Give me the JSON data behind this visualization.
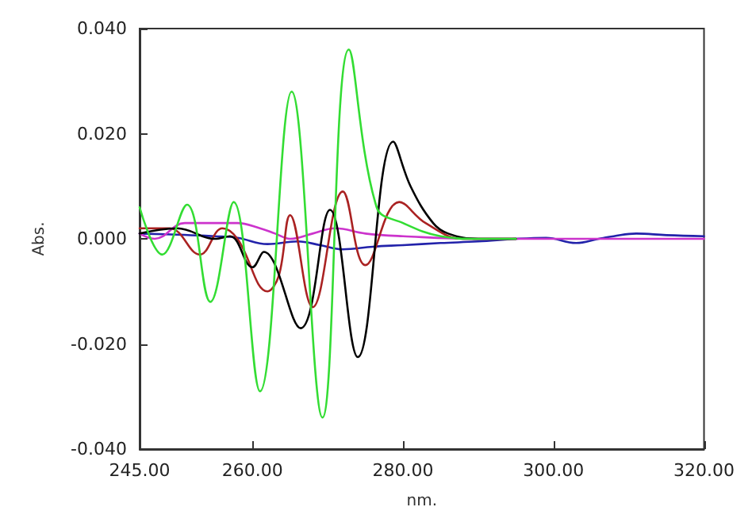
{
  "chart_data": {
    "type": "line",
    "xlabel": "nm.",
    "ylabel": "Abs.",
    "xlim": [
      245,
      320
    ],
    "xticks": [
      {
        "value": 245,
        "label": "245.00"
      },
      {
        "value": 260,
        "label": "260.00"
      },
      {
        "value": 280,
        "label": "280.00"
      },
      {
        "value": 300,
        "label": "300.00"
      },
      {
        "value": 320,
        "label": "320.00"
      }
    ],
    "ylim": [
      -0.04,
      0.04
    ],
    "yticks": [
      {
        "value": -0.04,
        "label": "-0.040"
      },
      {
        "value": -0.02,
        "label": "-0.020"
      },
      {
        "value": 0,
        "label": "0.000"
      },
      {
        "value": 0.02,
        "label": "0.020"
      },
      {
        "value": 0.04,
        "label": "0.040"
      }
    ],
    "grid": false,
    "marker": "none",
    "line_style": "solid",
    "series": [
      {
        "color": "#2222aa",
        "x": [
          245,
          250,
          255,
          258,
          262,
          266,
          269,
          272,
          276,
          280,
          285,
          290,
          295,
          299,
          303,
          306,
          308,
          311,
          315,
          320
        ],
        "values": [
          0.001,
          0.0008,
          0.0005,
          0.0002,
          -0.001,
          -0.0005,
          -0.0012,
          -0.002,
          -0.0015,
          -0.0012,
          -0.0008,
          -0.0005,
          0,
          0.0002,
          -0.0008,
          0,
          0.0005,
          0.001,
          0.0007,
          0.0005
        ]
      },
      {
        "color": "#cc33cc",
        "x": [
          245,
          247,
          251,
          255,
          258,
          261,
          263,
          265,
          268,
          271,
          275,
          280,
          290,
          300,
          310,
          320
        ],
        "values": [
          0.001,
          0,
          0.003,
          0.003,
          0.003,
          0.002,
          0.001,
          0,
          0.001,
          0.002,
          0.001,
          0.0005,
          0,
          0,
          0,
          0
        ]
      },
      {
        "color": "#aa2222",
        "x": [
          245,
          249,
          253,
          256,
          258,
          262,
          263.5,
          265,
          268,
          272,
          275,
          279.5,
          283,
          288,
          295
        ],
        "values": [
          0.002,
          0.002,
          -0.003,
          0.002,
          0,
          -0.01,
          -0.007,
          0.0045,
          -0.013,
          0.009,
          -0.005,
          0.007,
          0.003,
          0,
          0
        ]
      },
      {
        "color": "#000000",
        "x": [
          245,
          250,
          255,
          257,
          260,
          261.5,
          266.4,
          270.3,
          274,
          278.7,
          281,
          284,
          286,
          290,
          295
        ],
        "values": [
          0.001,
          0.002,
          0,
          0.0005,
          -0.0054,
          -0.0025,
          -0.017,
          0.0055,
          -0.0225,
          0.0185,
          0.01,
          0.003,
          0.001,
          0,
          0
        ]
      },
      {
        "color": "#33dd33",
        "x": [
          245,
          248,
          251.3,
          254.4,
          257.5,
          261,
          265.2,
          269.3,
          272.8,
          276.5,
          280,
          285,
          290,
          295
        ],
        "values": [
          0.006,
          -0.003,
          0.0065,
          -0.012,
          0.007,
          -0.029,
          0.028,
          -0.034,
          0.036,
          0.006,
          0.003,
          0.0005,
          0,
          0
        ]
      }
    ]
  }
}
